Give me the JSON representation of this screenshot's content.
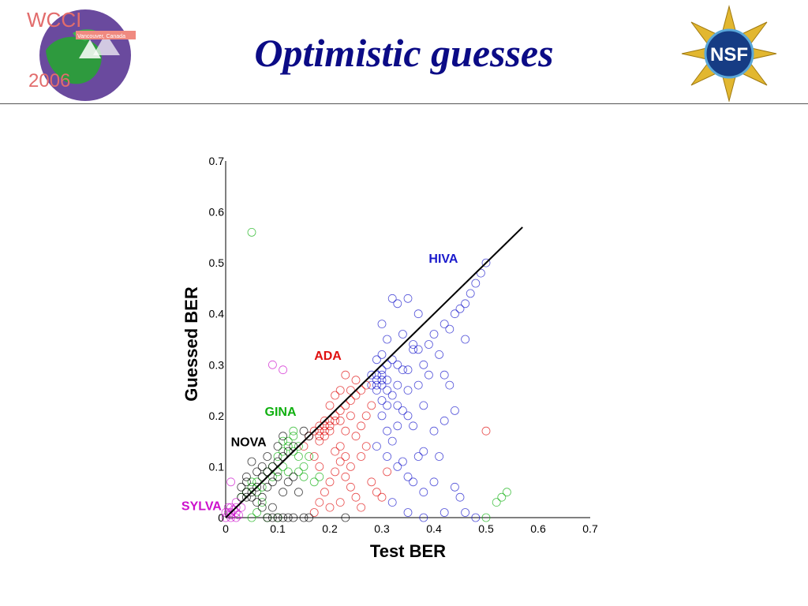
{
  "slide": {
    "title": "Optimistic guesses",
    "logo_left": {
      "name": "WCCI 2006 logo",
      "text_top": "WCCI",
      "text_year": "2006",
      "ribbon": "Vancouver, Canada"
    },
    "logo_right": {
      "name": "NSF logo",
      "text": "NSF"
    }
  },
  "colors": {
    "title": "#0b0b86",
    "HIVA": "#1a1acc",
    "ADA": "#e01010",
    "GINA": "#10b010",
    "NOVA": "#000000",
    "SYLVA": "#cc10cc"
  },
  "chart_data": {
    "type": "scatter",
    "xlabel": "Test BER",
    "ylabel": "Guessed BER",
    "xlim": [
      0,
      0.7
    ],
    "ylim": [
      0,
      0.7
    ],
    "xticks": [
      "0",
      "0.1",
      "0.2",
      "0.3",
      "0.4",
      "0.5",
      "0.6",
      "0.7"
    ],
    "yticks": [
      "0",
      "0.1",
      "0.2",
      "0.3",
      "0.4",
      "0.5",
      "0.6",
      "0.7"
    ],
    "grid": false,
    "marker": "open-circle",
    "reference_line": {
      "from": [
        0,
        0
      ],
      "to": [
        0.57,
        0.57
      ]
    },
    "series": [
      {
        "name": "HIVA",
        "color": "#1a1acc",
        "label_pos": [
          0.39,
          0.5
        ],
        "points": [
          [
            0.29,
            0.27
          ],
          [
            0.3,
            0.27
          ],
          [
            0.28,
            0.26
          ],
          [
            0.3,
            0.28
          ],
          [
            0.29,
            0.26
          ],
          [
            0.31,
            0.25
          ],
          [
            0.3,
            0.29
          ],
          [
            0.28,
            0.28
          ],
          [
            0.29,
            0.28
          ],
          [
            0.3,
            0.26
          ],
          [
            0.31,
            0.27
          ],
          [
            0.29,
            0.25
          ],
          [
            0.32,
            0.24
          ],
          [
            0.3,
            0.23
          ],
          [
            0.31,
            0.3
          ],
          [
            0.32,
            0.31
          ],
          [
            0.33,
            0.3
          ],
          [
            0.34,
            0.29
          ],
          [
            0.33,
            0.26
          ],
          [
            0.35,
            0.25
          ],
          [
            0.36,
            0.33
          ],
          [
            0.37,
            0.33
          ],
          [
            0.36,
            0.34
          ],
          [
            0.38,
            0.3
          ],
          [
            0.39,
            0.34
          ],
          [
            0.4,
            0.36
          ],
          [
            0.42,
            0.38
          ],
          [
            0.43,
            0.37
          ],
          [
            0.44,
            0.4
          ],
          [
            0.45,
            0.41
          ],
          [
            0.47,
            0.44
          ],
          [
            0.48,
            0.46
          ],
          [
            0.49,
            0.48
          ],
          [
            0.5,
            0.5
          ],
          [
            0.46,
            0.42
          ],
          [
            0.41,
            0.32
          ],
          [
            0.38,
            0.22
          ],
          [
            0.35,
            0.2
          ],
          [
            0.33,
            0.18
          ],
          [
            0.32,
            0.15
          ],
          [
            0.31,
            0.12
          ],
          [
            0.33,
            0.1
          ],
          [
            0.34,
            0.11
          ],
          [
            0.37,
            0.12
          ],
          [
            0.38,
            0.13
          ],
          [
            0.4,
            0.17
          ],
          [
            0.42,
            0.19
          ],
          [
            0.44,
            0.21
          ],
          [
            0.43,
            0.26
          ],
          [
            0.37,
            0.4
          ],
          [
            0.33,
            0.42
          ],
          [
            0.32,
            0.43
          ],
          [
            0.35,
            0.43
          ],
          [
            0.34,
            0.36
          ],
          [
            0.31,
            0.35
          ],
          [
            0.3,
            0.32
          ],
          [
            0.29,
            0.31
          ],
          [
            0.3,
            0.2
          ],
          [
            0.31,
            0.17
          ],
          [
            0.29,
            0.14
          ],
          [
            0.35,
            0.08
          ],
          [
            0.36,
            0.07
          ],
          [
            0.38,
            0.05
          ],
          [
            0.4,
            0.07
          ],
          [
            0.44,
            0.06
          ],
          [
            0.45,
            0.04
          ],
          [
            0.32,
            0.03
          ],
          [
            0.35,
            0.01
          ],
          [
            0.38,
            0.0
          ],
          [
            0.42,
            0.01
          ],
          [
            0.46,
            0.01
          ],
          [
            0.48,
            0.0
          ],
          [
            0.41,
            0.12
          ],
          [
            0.39,
            0.28
          ],
          [
            0.37,
            0.26
          ],
          [
            0.35,
            0.29
          ],
          [
            0.34,
            0.21
          ],
          [
            0.36,
            0.18
          ],
          [
            0.3,
            0.38
          ],
          [
            0.31,
            0.22
          ],
          [
            0.33,
            0.22
          ],
          [
            0.46,
            0.35
          ],
          [
            0.42,
            0.28
          ]
        ]
      },
      {
        "name": "ADA",
        "color": "#e01010",
        "label_pos": [
          0.17,
          0.31
        ],
        "points": [
          [
            0.18,
            0.17
          ],
          [
            0.19,
            0.18
          ],
          [
            0.18,
            0.16
          ],
          [
            0.19,
            0.17
          ],
          [
            0.17,
            0.17
          ],
          [
            0.18,
            0.18
          ],
          [
            0.2,
            0.18
          ],
          [
            0.19,
            0.16
          ],
          [
            0.18,
            0.15
          ],
          [
            0.2,
            0.19
          ],
          [
            0.21,
            0.2
          ],
          [
            0.22,
            0.21
          ],
          [
            0.23,
            0.22
          ],
          [
            0.21,
            0.19
          ],
          [
            0.2,
            0.17
          ],
          [
            0.19,
            0.19
          ],
          [
            0.22,
            0.19
          ],
          [
            0.24,
            0.23
          ],
          [
            0.25,
            0.24
          ],
          [
            0.26,
            0.25
          ],
          [
            0.27,
            0.26
          ],
          [
            0.24,
            0.2
          ],
          [
            0.23,
            0.17
          ],
          [
            0.22,
            0.14
          ],
          [
            0.23,
            0.12
          ],
          [
            0.24,
            0.1
          ],
          [
            0.25,
            0.16
          ],
          [
            0.26,
            0.18
          ],
          [
            0.27,
            0.2
          ],
          [
            0.28,
            0.22
          ],
          [
            0.22,
            0.11
          ],
          [
            0.23,
            0.08
          ],
          [
            0.24,
            0.06
          ],
          [
            0.21,
            0.09
          ],
          [
            0.2,
            0.07
          ],
          [
            0.19,
            0.05
          ],
          [
            0.18,
            0.03
          ],
          [
            0.17,
            0.01
          ],
          [
            0.2,
            0.02
          ],
          [
            0.22,
            0.03
          ],
          [
            0.25,
            0.04
          ],
          [
            0.26,
            0.02
          ],
          [
            0.28,
            0.07
          ],
          [
            0.29,
            0.05
          ],
          [
            0.3,
            0.04
          ],
          [
            0.23,
            0.28
          ],
          [
            0.24,
            0.25
          ],
          [
            0.25,
            0.27
          ],
          [
            0.21,
            0.24
          ],
          [
            0.16,
            0.16
          ],
          [
            0.15,
            0.14
          ],
          [
            0.17,
            0.12
          ],
          [
            0.18,
            0.1
          ],
          [
            0.21,
            0.13
          ],
          [
            0.26,
            0.12
          ],
          [
            0.27,
            0.14
          ],
          [
            0.2,
            0.22
          ],
          [
            0.22,
            0.25
          ],
          [
            0.5,
            0.17
          ],
          [
            0.31,
            0.09
          ]
        ]
      },
      {
        "name": "GINA",
        "color": "#10b010",
        "label_pos": [
          0.075,
          0.2
        ],
        "points": [
          [
            0.05,
            0.06
          ],
          [
            0.06,
            0.05
          ],
          [
            0.05,
            0.07
          ],
          [
            0.07,
            0.06
          ],
          [
            0.06,
            0.07
          ],
          [
            0.08,
            0.09
          ],
          [
            0.09,
            0.1
          ],
          [
            0.1,
            0.12
          ],
          [
            0.11,
            0.13
          ],
          [
            0.12,
            0.14
          ],
          [
            0.13,
            0.13
          ],
          [
            0.12,
            0.15
          ],
          [
            0.13,
            0.16
          ],
          [
            0.14,
            0.14
          ],
          [
            0.11,
            0.1
          ],
          [
            0.1,
            0.09
          ],
          [
            0.09,
            0.08
          ],
          [
            0.12,
            0.09
          ],
          [
            0.14,
            0.09
          ],
          [
            0.15,
            0.1
          ],
          [
            0.16,
            0.12
          ],
          [
            0.15,
            0.08
          ],
          [
            0.17,
            0.07
          ],
          [
            0.18,
            0.08
          ],
          [
            0.07,
            0.03
          ],
          [
            0.06,
            0.01
          ],
          [
            0.05,
            0.0
          ],
          [
            0.08,
            0.0
          ],
          [
            0.1,
            0.0
          ],
          [
            0.05,
            0.56
          ],
          [
            0.54,
            0.05
          ],
          [
            0.53,
            0.04
          ],
          [
            0.52,
            0.03
          ],
          [
            0.5,
            0.0
          ],
          [
            0.04,
            0.05
          ],
          [
            0.03,
            0.04
          ],
          [
            0.11,
            0.15
          ],
          [
            0.13,
            0.17
          ],
          [
            0.14,
            0.12
          ]
        ]
      },
      {
        "name": "NOVA",
        "color": "#000000",
        "label_pos": [
          0.01,
          0.14
        ],
        "points": [
          [
            0.04,
            0.05
          ],
          [
            0.05,
            0.05
          ],
          [
            0.04,
            0.04
          ],
          [
            0.06,
            0.06
          ],
          [
            0.05,
            0.04
          ],
          [
            0.03,
            0.04
          ],
          [
            0.07,
            0.08
          ],
          [
            0.08,
            0.09
          ],
          [
            0.09,
            0.1
          ],
          [
            0.1,
            0.11
          ],
          [
            0.11,
            0.12
          ],
          [
            0.12,
            0.13
          ],
          [
            0.13,
            0.14
          ],
          [
            0.06,
            0.03
          ],
          [
            0.07,
            0.04
          ],
          [
            0.08,
            0.06
          ],
          [
            0.09,
            0.07
          ],
          [
            0.1,
            0.08
          ],
          [
            0.11,
            0.05
          ],
          [
            0.12,
            0.07
          ],
          [
            0.08,
            0.12
          ],
          [
            0.07,
            0.1
          ],
          [
            0.05,
            0.11
          ],
          [
            0.06,
            0.09
          ],
          [
            0.04,
            0.08
          ],
          [
            0.03,
            0.06
          ],
          [
            0.08,
            0.0
          ],
          [
            0.09,
            0.0
          ],
          [
            0.1,
            0.0
          ],
          [
            0.11,
            0.0
          ],
          [
            0.12,
            0.0
          ],
          [
            0.13,
            0.0
          ],
          [
            0.15,
            0.0
          ],
          [
            0.16,
            0.0
          ],
          [
            0.07,
            0.02
          ],
          [
            0.09,
            0.02
          ],
          [
            0.14,
            0.05
          ],
          [
            0.16,
            0.16
          ],
          [
            0.15,
            0.17
          ],
          [
            0.1,
            0.14
          ],
          [
            0.11,
            0.16
          ],
          [
            0.13,
            0.08
          ],
          [
            0.23,
            0.0
          ],
          [
            0.04,
            0.07
          ]
        ]
      },
      {
        "name": "SYLVA",
        "color": "#cc10cc",
        "label_pos": [
          -0.085,
          0.015
        ],
        "points": [
          [
            0.01,
            0.01
          ],
          [
            0.02,
            0.01
          ],
          [
            0.01,
            0.02
          ],
          [
            0.0,
            0.0
          ],
          [
            0.01,
            0.0
          ],
          [
            0.02,
            0.02
          ],
          [
            0.015,
            0.015
          ],
          [
            0.005,
            0.01
          ],
          [
            0.025,
            0.005
          ],
          [
            0.0,
            0.01
          ],
          [
            0.02,
            0.0
          ],
          [
            0.01,
            0.005
          ],
          [
            0.03,
            0.02
          ],
          [
            0.02,
            0.03
          ],
          [
            0.005,
            0.02
          ],
          [
            0.01,
            0.07
          ],
          [
            0.11,
            0.29
          ],
          [
            0.09,
            0.3
          ]
        ]
      }
    ]
  }
}
